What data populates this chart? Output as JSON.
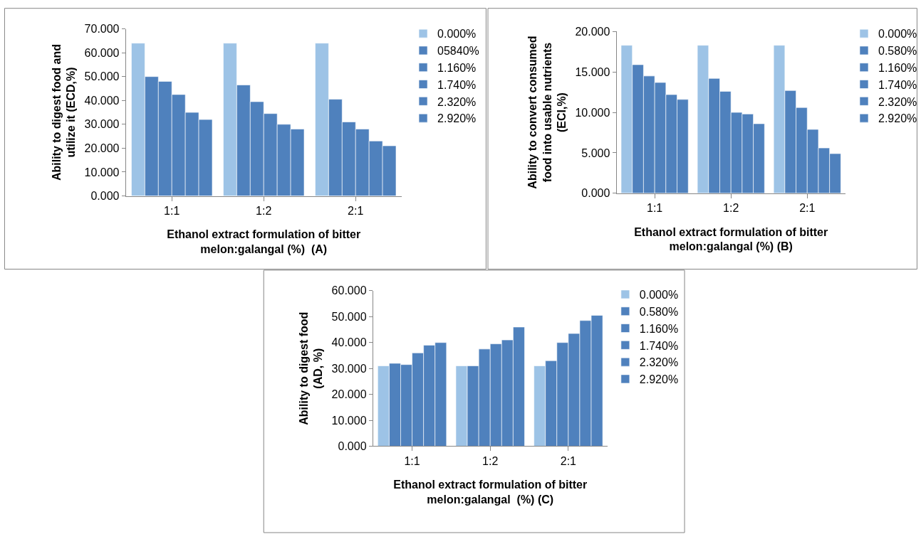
{
  "chart_data": [
    {
      "type": "bar",
      "categories": [
        "1:1",
        "1:2",
        "2:1"
      ],
      "xlabel": "Ethanol extract formulation of bitter\nmelon:galangal (%)  (A)",
      "ylabel": "Ability to digest food and\nutilize it (ECD,%)",
      "ylim": [
        0,
        70
      ],
      "yticks": [
        {
          "value": 0,
          "label": "0.000"
        },
        {
          "value": 10,
          "label": "10.000"
        },
        {
          "value": 20,
          "label": "20.000"
        },
        {
          "value": 30,
          "label": "30.000"
        },
        {
          "value": 40,
          "label": "40.000"
        },
        {
          "value": 50,
          "label": "50.000"
        },
        {
          "value": 60,
          "label": "60.000"
        },
        {
          "value": 70,
          "label": "70.000"
        }
      ],
      "legend": "right",
      "series": [
        {
          "name": "0.000%",
          "color": "#9dc3e6",
          "values": [
            64,
            64,
            64
          ]
        },
        {
          "name": "05840%",
          "color": "#4f81bd",
          "values": [
            50,
            46.5,
            40.5
          ]
        },
        {
          "name": "1.160%",
          "color": "#4f81bd",
          "values": [
            48,
            39.5,
            31
          ]
        },
        {
          "name": "1.740%",
          "color": "#4f81bd",
          "values": [
            42.5,
            34.5,
            28
          ]
        },
        {
          "name": "2.320%",
          "color": "#4f81bd",
          "values": [
            35,
            30,
            23
          ]
        },
        {
          "name": "2.920%",
          "color": "#4f81bd",
          "values": [
            32,
            28,
            21
          ]
        }
      ]
    },
    {
      "type": "bar",
      "categories": [
        "1:1",
        "1:2",
        "2:1"
      ],
      "xlabel": "Ethanol extract formulation of bitter\nmelon:galangal (%) (B)",
      "ylabel": "Ability to convert consumed\nfood into usable nutrients\n(ECI,%)",
      "ylim": [
        0,
        20
      ],
      "yticks": [
        {
          "value": 0,
          "label": "0.000"
        },
        {
          "value": 5,
          "label": "5.000"
        },
        {
          "value": 10,
          "label": "10.000"
        },
        {
          "value": 15,
          "label": "15.000"
        },
        {
          "value": 20,
          "label": "20.000"
        }
      ],
      "legend": "right",
      "series": [
        {
          "name": "0.000%",
          "color": "#9dc3e6",
          "values": [
            18.3,
            18.3,
            18.3
          ]
        },
        {
          "name": "0.580%",
          "color": "#4f81bd",
          "values": [
            15.9,
            14.2,
            12.7
          ]
        },
        {
          "name": "1.160%",
          "color": "#4f81bd",
          "values": [
            14.5,
            12.6,
            10.6
          ]
        },
        {
          "name": "1.740%",
          "color": "#4f81bd",
          "values": [
            13.7,
            10.0,
            7.9
          ]
        },
        {
          "name": "2.320%",
          "color": "#4f81bd",
          "values": [
            12.2,
            9.8,
            5.6
          ]
        },
        {
          "name": "2.920%",
          "color": "#4f81bd",
          "values": [
            11.6,
            8.6,
            4.9
          ]
        }
      ]
    },
    {
      "type": "bar",
      "categories": [
        "1:1",
        "1:2",
        "2:1"
      ],
      "xlabel": "Ethanol extract formulation of bitter\nmelon:galangal  (%) (C)",
      "ylabel": "Ability to digest food\n(AD, %)",
      "ylim": [
        0,
        60
      ],
      "yticks": [
        {
          "value": 0,
          "label": "0.000"
        },
        {
          "value": 10,
          "label": "10.000"
        },
        {
          "value": 20,
          "label": "20.000"
        },
        {
          "value": 30,
          "label": "30.000"
        },
        {
          "value": 40,
          "label": "40.000"
        },
        {
          "value": 50,
          "label": "50.000"
        },
        {
          "value": 60,
          "label": "60.000"
        }
      ],
      "legend": "right",
      "series": [
        {
          "name": "0.000%",
          "color": "#9dc3e6",
          "values": [
            31,
            31,
            31
          ]
        },
        {
          "name": "0.580%",
          "color": "#4f81bd",
          "values": [
            32,
            31,
            33
          ]
        },
        {
          "name": "1.160%",
          "color": "#4f81bd",
          "values": [
            31.5,
            37.5,
            40
          ]
        },
        {
          "name": "1.740%",
          "color": "#4f81bd",
          "values": [
            36,
            39.5,
            43.5
          ]
        },
        {
          "name": "2.320%",
          "color": "#4f81bd",
          "values": [
            39,
            41,
            48.5
          ]
        },
        {
          "name": "2.920%",
          "color": "#4f81bd",
          "values": [
            40,
            46,
            50.5
          ]
        }
      ]
    }
  ]
}
